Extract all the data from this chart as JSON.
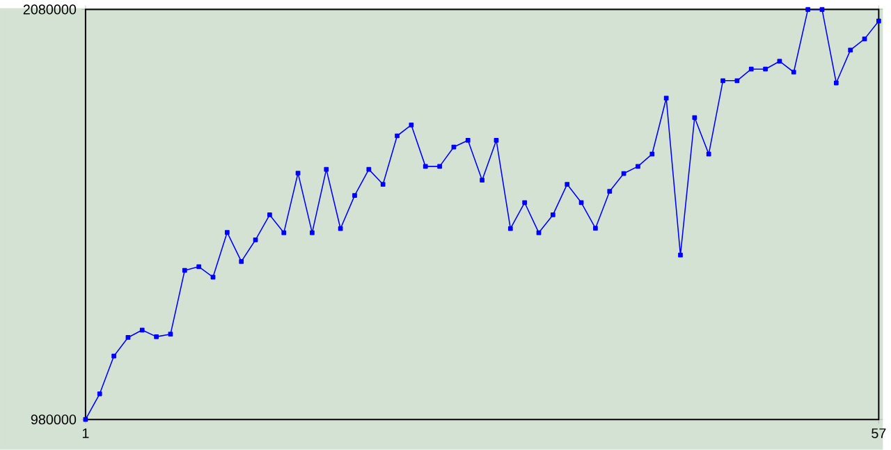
{
  "chart_data": {
    "type": "line",
    "color": "#0000ff",
    "marker": "square",
    "x": [
      1,
      2,
      3,
      4,
      5,
      6,
      7,
      8,
      9,
      10,
      11,
      12,
      13,
      14,
      15,
      16,
      17,
      18,
      19,
      20,
      21,
      22,
      23,
      24,
      25,
      26,
      27,
      28,
      29,
      30,
      31,
      32,
      33,
      34,
      35,
      36,
      37,
      38,
      39,
      40,
      41,
      42,
      43,
      44,
      45,
      46,
      47,
      48,
      49,
      50,
      51,
      52,
      53,
      54,
      55,
      56,
      57
    ],
    "values": [
      980000,
      1049000,
      1150000,
      1200000,
      1220000,
      1202000,
      1209000,
      1380000,
      1390000,
      1362000,
      1482000,
      1404000,
      1462000,
      1529000,
      1481000,
      1641000,
      1481000,
      1651000,
      1492000,
      1581000,
      1651000,
      1611000,
      1741000,
      1770000,
      1659000,
      1659000,
      1711000,
      1729000,
      1622000,
      1729000,
      1492000,
      1562000,
      1481000,
      1529000,
      1611000,
      1562000,
      1493000,
      1592000,
      1640000,
      1659000,
      1692000,
      1842000,
      1421000,
      1790000,
      1692000,
      1889000,
      1889000,
      1920000,
      1920000,
      1941000,
      1912000,
      2080000,
      2080000,
      1883000,
      1971000,
      2001000,
      2049000
    ],
    "xlim": [
      1,
      57
    ],
    "xticks": [
      1,
      57
    ],
    "ylim": [
      980000,
      2080000
    ],
    "yticks": [
      980000,
      2080000
    ]
  }
}
